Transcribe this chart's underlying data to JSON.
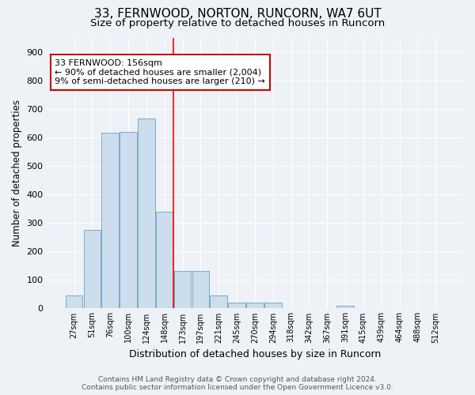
{
  "title": "33, FERNWOOD, NORTON, RUNCORN, WA7 6UT",
  "subtitle": "Size of property relative to detached houses in Runcorn",
  "xlabel": "Distribution of detached houses by size in Runcorn",
  "ylabel": "Number of detached properties",
  "categories": [
    "27sqm",
    "51sqm",
    "76sqm",
    "100sqm",
    "124sqm",
    "148sqm",
    "173sqm",
    "197sqm",
    "221sqm",
    "245sqm",
    "270sqm",
    "294sqm",
    "318sqm",
    "342sqm",
    "367sqm",
    "391sqm",
    "415sqm",
    "439sqm",
    "464sqm",
    "488sqm",
    "512sqm"
  ],
  "values": [
    45,
    275,
    615,
    620,
    665,
    340,
    130,
    130,
    45,
    20,
    20,
    20,
    0,
    0,
    0,
    10,
    0,
    0,
    0,
    0,
    0
  ],
  "bar_color": "#ccdded",
  "bar_edge_color": "#7aaac8",
  "red_line_x": 5.5,
  "annotation_text": "33 FERNWOOD: 156sqm\n← 90% of detached houses are smaller (2,004)\n9% of semi-detached houses are larger (210) →",
  "annotation_box_color": "#ffffff",
  "annotation_box_edge": "#cc0000",
  "ylim": [
    0,
    950
  ],
  "yticks": [
    0,
    100,
    200,
    300,
    400,
    500,
    600,
    700,
    800,
    900
  ],
  "footer_line1": "Contains HM Land Registry data © Crown copyright and database right 2024.",
  "footer_line2": "Contains public sector information licensed under the Open Government Licence v3.0.",
  "background_color": "#eef2f7",
  "grid_color": "#ffffff",
  "title_fontsize": 11,
  "subtitle_fontsize": 9.5
}
